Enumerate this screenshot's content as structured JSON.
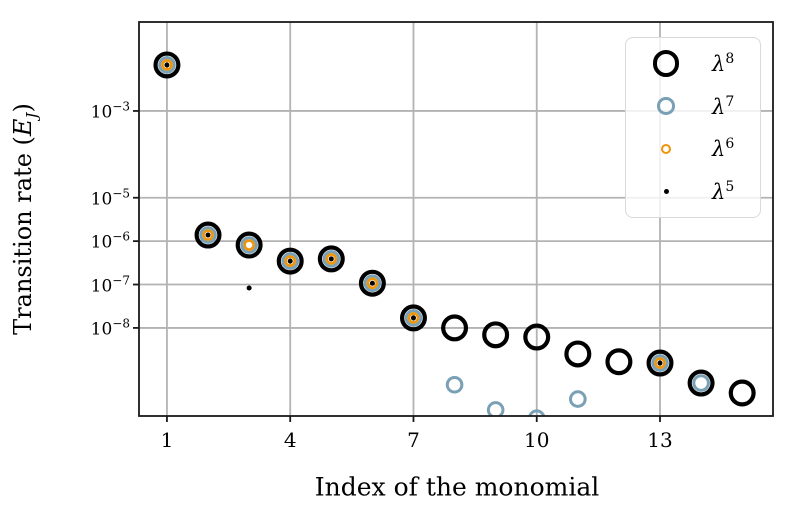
{
  "figure": {
    "background": "#ffffff",
    "colors": {
      "grid": "#b3b3b3",
      "spine": "#1a1a1a",
      "tick": "#1a1a1a",
      "text": "#000000",
      "legend_border": "#d9d9d9",
      "lambda8_black": "#000000",
      "lambda7_blue": "#7aa0b5",
      "lambda6_orange": "#f0940a",
      "lambda5_black": "#000000"
    }
  },
  "chart_data": {
    "type": "scatter",
    "title": "",
    "xlabel": "Index of the monomial",
    "ylabel": {
      "prefix": "Transition rate (",
      "variable": "E",
      "subscript": "J",
      "suffix": ")",
      "plain": "Transition rate (E_J)"
    },
    "x_ticks": [
      1,
      4,
      7,
      10,
      13
    ],
    "y_tick_exponents": [
      -3,
      -5,
      -6,
      -7,
      -8
    ],
    "y_tick_labels": [
      "10^-3",
      "10^-5",
      "10^-6",
      "10^-7",
      "10^-8"
    ],
    "xlim": [
      0.32,
      15.75
    ],
    "ylim_log10": [
      -10.03,
      -0.95
    ],
    "yscale": "log",
    "grid": true,
    "legend_position": "upper right",
    "series": [
      {
        "id": "lambda8",
        "label": {
          "symbol": "λ",
          "exponent": "8"
        },
        "marker": {
          "shape": "open-circle",
          "color": "#000000",
          "outer_diameter": 27,
          "stroke_width": 4.2
        },
        "x": [
          1,
          2,
          3,
          4,
          5,
          6,
          7,
          8,
          9,
          10,
          11,
          12,
          13,
          14,
          15
        ],
        "log10y": [
          -1.94,
          -5.86,
          -6.09,
          -6.46,
          -6.41,
          -6.97,
          -7.77,
          -8.0,
          -8.16,
          -8.21,
          -8.6,
          -8.78,
          -8.81,
          -9.27,
          -9.5
        ],
        "y_approx": [
          "1.2e-2",
          "1.4e-6",
          "8.1e-7",
          "3.5e-7",
          "3.9e-7",
          "1.1e-7",
          "1.7e-8",
          "1.0e-8",
          "6.9e-9",
          "6.2e-9",
          "2.5e-9",
          "1.7e-9",
          "1.5e-9",
          "5.4e-10",
          "3.2e-10"
        ]
      },
      {
        "id": "lambda7",
        "label": {
          "symbol": "λ",
          "exponent": "7"
        },
        "marker": {
          "shape": "open-circle",
          "color": "#7aa0b5",
          "outer_diameter": 17.6,
          "stroke_width": 3.0
        },
        "x": [
          1,
          2,
          3,
          4,
          5,
          6,
          7,
          8,
          9,
          10,
          11,
          13,
          14
        ],
        "log10y": [
          -1.94,
          -5.86,
          -6.09,
          -6.46,
          -6.41,
          -6.97,
          -7.77,
          -9.31,
          -9.89,
          -10.08,
          -9.64,
          -8.81,
          -9.27
        ],
        "y_approx": [
          "1.2e-2",
          "1.4e-6",
          "8.1e-7",
          "3.5e-7",
          "3.9e-7",
          "1.1e-7",
          "1.7e-8",
          "4.9e-10",
          "1.3e-10",
          "8e-11",
          "2.3e-10",
          "1.5e-9",
          "5.4e-10"
        ]
      },
      {
        "id": "lambda6",
        "label": {
          "symbol": "λ",
          "exponent": "6"
        },
        "marker": {
          "shape": "open-circle",
          "color": "#f0940a",
          "outer_diameter": 11.6,
          "stroke_width": 2.6
        },
        "x": [
          1,
          2,
          3,
          4,
          5,
          6,
          7,
          13
        ],
        "log10y": [
          -1.94,
          -5.86,
          -6.09,
          -6.46,
          -6.41,
          -6.97,
          -7.77,
          -8.81
        ],
        "y_approx": [
          "1.2e-2",
          "1.4e-6",
          "8.1e-7",
          "3.5e-7",
          "3.9e-7",
          "1.1e-7",
          "1.7e-8",
          "1.5e-9"
        ]
      },
      {
        "id": "lambda5",
        "label": {
          "symbol": "λ",
          "exponent": "5"
        },
        "marker": {
          "shape": "filled-dot",
          "color": "#000000",
          "outer_diameter": 5,
          "stroke_width": 0
        },
        "x": [
          1,
          2,
          3,
          4,
          5,
          6,
          7,
          13
        ],
        "log10y": [
          -1.94,
          -5.86,
          -7.08,
          -6.46,
          -6.41,
          -6.97,
          -7.77,
          -8.81
        ],
        "y_approx": [
          "1.2e-2",
          "1.4e-6",
          "8.3e-8",
          "3.5e-7",
          "3.9e-7",
          "1.1e-7",
          "1.7e-8",
          "1.5e-9"
        ]
      }
    ]
  }
}
